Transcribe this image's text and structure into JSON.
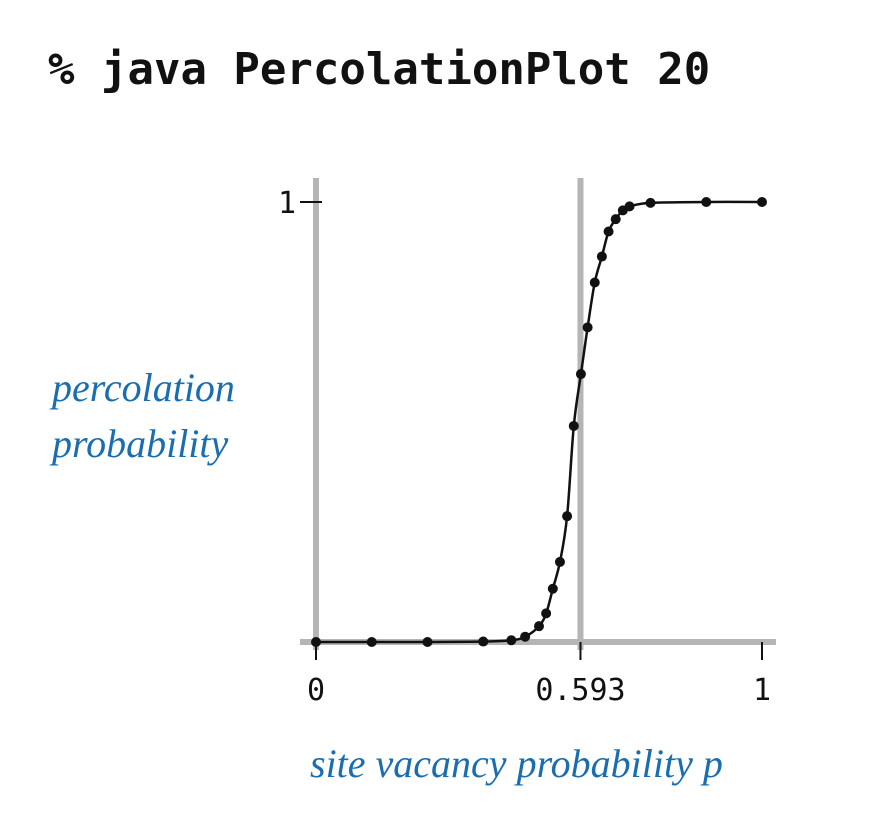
{
  "header": {
    "command": "% java PercolationPlot 20"
  },
  "colors": {
    "axis": "#b5b5b5",
    "curve": "#111111",
    "label": "#1a6eb0"
  },
  "chart_data": {
    "type": "line",
    "title": "",
    "xlabel": "site vacancy probability p",
    "ylabel": "percolation probability",
    "xlim": [
      0,
      1
    ],
    "ylim": [
      0,
      1
    ],
    "x_ticks": [
      0,
      0.593,
      1
    ],
    "x_tick_labels": [
      "0",
      "0.593",
      "1"
    ],
    "y_ticks": [
      1
    ],
    "y_tick_labels": [
      "1"
    ],
    "reference_line_x": 0.593,
    "series": [
      {
        "x": [
          0.0,
          0.125,
          0.25,
          0.375,
          0.438,
          0.469,
          0.5,
          0.516,
          0.531,
          0.547,
          0.563,
          0.578,
          0.594,
          0.609,
          0.625,
          0.641,
          0.656,
          0.672,
          0.688,
          0.703,
          0.75,
          0.875,
          1.0
        ],
        "y": [
          0.0,
          0.0,
          0.0,
          0.001,
          0.004,
          0.012,
          0.036,
          0.065,
          0.121,
          0.182,
          0.286,
          0.491,
          0.609,
          0.715,
          0.817,
          0.876,
          0.933,
          0.961,
          0.981,
          0.99,
          0.998,
          1.0,
          1.0
        ]
      }
    ]
  }
}
